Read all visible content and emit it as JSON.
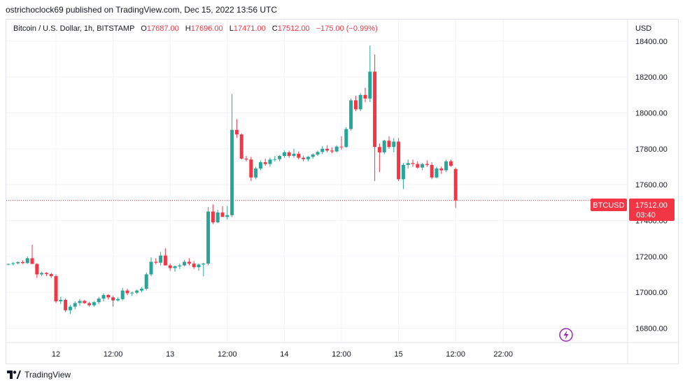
{
  "publish_line": "ostrichoclock69 published on TradingView.com, Dec 15, 2022 13:56 UTC",
  "legend": {
    "title": "Bitcoin / U.S. Dollar, 1h, BITSTAMP",
    "o_label": "O",
    "o_value": "17687.00",
    "h_label": "H",
    "h_value": "17696.00",
    "l_label": "L",
    "l_value": "17471.00",
    "c_label": "C",
    "c_value": "17512.00",
    "change": "−175.00 (−0.99%)"
  },
  "currency": "USD",
  "price_tag": {
    "symbol": "BTCUSD",
    "price": "17512.00",
    "countdown": "03:40"
  },
  "footer": {
    "brand": "TradingView",
    "logo_icon": "tradingview-logo-icon"
  },
  "colors": {
    "up": "#26a69a",
    "down": "#f23645",
    "grid": "#f0f3fa",
    "text": "#131722",
    "event": "#9c27b0"
  },
  "chart_data": {
    "type": "candlestick",
    "ylim": [
      16720,
      18520
    ],
    "yticks": [
      16800,
      17000,
      17200,
      17400,
      17600,
      17800,
      18000,
      18200,
      18400
    ],
    "ytick_labels": [
      "16800.00",
      "17000.00",
      "17200.00",
      "17400.00",
      "17600.00",
      "17800.00",
      "18000.00",
      "18200.00",
      "18400.00"
    ],
    "xticks": [
      {
        "index": 10,
        "label": "12"
      },
      {
        "index": 22,
        "label": "12:00"
      },
      {
        "index": 34,
        "label": "13"
      },
      {
        "index": 46,
        "label": "12:00"
      },
      {
        "index": 58,
        "label": "14"
      },
      {
        "index": 70,
        "label": "12:00"
      },
      {
        "index": 82,
        "label": "15"
      },
      {
        "index": 94,
        "label": "12:00"
      },
      {
        "index": 104,
        "label": "22:00"
      }
    ],
    "last_price": 17512,
    "event_marker_index": 94,
    "candles": [
      [
        17155,
        17160,
        17150,
        17158
      ],
      [
        17158,
        17168,
        17150,
        17162
      ],
      [
        17162,
        17172,
        17156,
        17168
      ],
      [
        17168,
        17178,
        17158,
        17163
      ],
      [
        17163,
        17200,
        17158,
        17190
      ],
      [
        17190,
        17265,
        17170,
        17158
      ],
      [
        17158,
        17162,
        17080,
        17100
      ],
      [
        17100,
        17115,
        17090,
        17108
      ],
      [
        17108,
        17112,
        17090,
        17102
      ],
      [
        17102,
        17108,
        17080,
        17090
      ],
      [
        17090,
        17100,
        16940,
        16950
      ],
      [
        16950,
        16975,
        16935,
        16958
      ],
      [
        16958,
        16965,
        16890,
        16900
      ],
      [
        16900,
        16930,
        16880,
        16920
      ],
      [
        16920,
        16950,
        16905,
        16940
      ],
      [
        16940,
        16962,
        16925,
        16952
      ],
      [
        16952,
        16958,
        16935,
        16940
      ],
      [
        16940,
        16948,
        16920,
        16928
      ],
      [
        16928,
        16950,
        16920,
        16945
      ],
      [
        16945,
        16975,
        16935,
        16965
      ],
      [
        16965,
        16995,
        16950,
        16985
      ],
      [
        16985,
        16990,
        16960,
        16972
      ],
      [
        16972,
        16980,
        16920,
        16955
      ],
      [
        16955,
        16972,
        16950,
        16962
      ],
      [
        16962,
        17025,
        16955,
        17010
      ],
      [
        17010,
        17020,
        16985,
        16995
      ],
      [
        16995,
        17005,
        16980,
        16998
      ],
      [
        16998,
        17015,
        16990,
        17010
      ],
      [
        17010,
        17030,
        17000,
        17020
      ],
      [
        17020,
        17110,
        17010,
        17100
      ],
      [
        17100,
        17195,
        17090,
        17170
      ],
      [
        17170,
        17190,
        17155,
        17165
      ],
      [
        17165,
        17225,
        17150,
        17205
      ],
      [
        17205,
        17245,
        17150,
        17150
      ],
      [
        17150,
        17160,
        17120,
        17135
      ],
      [
        17135,
        17150,
        17115,
        17145
      ],
      [
        17145,
        17160,
        17130,
        17150
      ],
      [
        17150,
        17180,
        17145,
        17170
      ],
      [
        17170,
        17190,
        17150,
        17160
      ],
      [
        17160,
        17175,
        17130,
        17140
      ],
      [
        17140,
        17160,
        17120,
        17155
      ],
      [
        17155,
        17165,
        17090,
        17160
      ],
      [
        17160,
        17475,
        17150,
        17450
      ],
      [
        17450,
        17490,
        17380,
        17390
      ],
      [
        17390,
        17460,
        17385,
        17445
      ],
      [
        17445,
        17480,
        17420,
        17420
      ],
      [
        17420,
        17480,
        17405,
        17430
      ],
      [
        17430,
        18105,
        17420,
        17905
      ],
      [
        17905,
        17965,
        17860,
        17880
      ],
      [
        17880,
        17885,
        17740,
        17745
      ],
      [
        17745,
        17760,
        17730,
        17740
      ],
      [
        17740,
        17755,
        17620,
        17640
      ],
      [
        17640,
        17700,
        17630,
        17690
      ],
      [
        17690,
        17735,
        17680,
        17725
      ],
      [
        17725,
        17745,
        17705,
        17715
      ],
      [
        17715,
        17750,
        17700,
        17740
      ],
      [
        17740,
        17760,
        17730,
        17742
      ],
      [
        17742,
        17765,
        17730,
        17760
      ],
      [
        17760,
        17790,
        17750,
        17780
      ],
      [
        17780,
        17790,
        17750,
        17760
      ],
      [
        17760,
        17800,
        17750,
        17772
      ],
      [
        17772,
        17785,
        17740,
        17750
      ],
      [
        17750,
        17760,
        17730,
        17742
      ],
      [
        17742,
        17760,
        17730,
        17755
      ],
      [
        17755,
        17775,
        17745,
        17768
      ],
      [
        17768,
        17790,
        17760,
        17782
      ],
      [
        17782,
        17815,
        17770,
        17800
      ],
      [
        17800,
        17820,
        17780,
        17790
      ],
      [
        17790,
        17808,
        17775,
        17785
      ],
      [
        17785,
        17820,
        17780,
        17812
      ],
      [
        17812,
        17870,
        17795,
        17810
      ],
      [
        17810,
        17920,
        17805,
        17910
      ],
      [
        17910,
        18080,
        17900,
        18070
      ],
      [
        18070,
        18095,
        18010,
        18020
      ],
      [
        18020,
        18110,
        18010,
        18100
      ],
      [
        18100,
        18140,
        18060,
        18080
      ],
      [
        18080,
        18375,
        18060,
        18230
      ],
      [
        18230,
        18325,
        17620,
        17810
      ],
      [
        17810,
        17830,
        17670,
        17780
      ],
      [
        17780,
        17850,
        17770,
        17845
      ],
      [
        17845,
        17870,
        17800,
        17810
      ],
      [
        17810,
        17860,
        17780,
        17840
      ],
      [
        17840,
        17860,
        17620,
        17630
      ],
      [
        17630,
        17720,
        17575,
        17710
      ],
      [
        17710,
        17740,
        17690,
        17720
      ],
      [
        17720,
        17740,
        17700,
        17715
      ],
      [
        17715,
        17730,
        17690,
        17695
      ],
      [
        17695,
        17720,
        17680,
        17715
      ],
      [
        17715,
        17735,
        17700,
        17710
      ],
      [
        17710,
        17725,
        17630,
        17640
      ],
      [
        17640,
        17700,
        17635,
        17690
      ],
      [
        17690,
        17700,
        17660,
        17680
      ],
      [
        17680,
        17740,
        17670,
        17730
      ],
      [
        17730,
        17740,
        17700,
        17705
      ],
      [
        17687,
        17696,
        17471,
        17512
      ]
    ]
  }
}
